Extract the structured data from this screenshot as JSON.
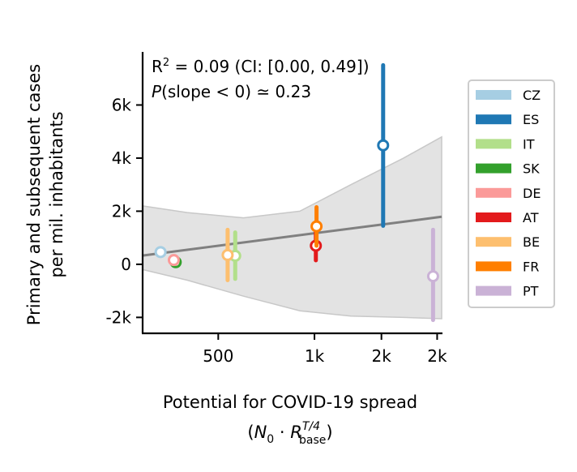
{
  "chart_data": {
    "type": "scatter",
    "title": "",
    "xlabel_line1": "Potential for COVID-19 spread",
    "xlabel_math": {
      "base": "N",
      "sub0": "0",
      "dot": " · ",
      "r": "R",
      "sup": "T/4",
      "sub": "base"
    },
    "ylabel_lines": [
      "Primary and subsequent cases",
      "per mil. inhabitants"
    ],
    "annotation_r2": {
      "r": "R",
      "sup": "2",
      "rest": " = 0.09 (CI: [0.00, 0.49])"
    },
    "annotation_p": {
      "p": "P",
      "rest": "(slope < 0) ≃ 0.23"
    },
    "xscale": "log",
    "xlim": [
      290,
      2500
    ],
    "ylim": [
      -2600,
      8000
    ],
    "x_ticks": [
      {
        "value": 500,
        "label": "500"
      },
      {
        "value": 1000,
        "label": "1k"
      },
      {
        "value": 1620,
        "label": "2k"
      },
      {
        "value": 2420,
        "label": "2k"
      }
    ],
    "y_ticks": [
      {
        "value": 6000,
        "label": "6k"
      },
      {
        "value": 4000,
        "label": "4k"
      },
      {
        "value": 2000,
        "label": "2k"
      },
      {
        "value": 0,
        "label": "0"
      },
      {
        "value": -2000,
        "label": "-2k"
      }
    ],
    "regression": {
      "x": [
        290,
        2500
      ],
      "y": [
        330,
        1790
      ],
      "color": "#808080"
    },
    "confidence_band": {
      "x": [
        290,
        400,
        600,
        900,
        1300,
        1900,
        2500
      ],
      "lower": [
        -200,
        -600,
        -1200,
        -1750,
        -1950,
        -2000,
        -2050
      ],
      "upper": [
        2200,
        1950,
        1750,
        2000,
        3000,
        4000,
        4800
      ],
      "color": "#d9d9d9"
    },
    "series": [
      {
        "name": "CZ",
        "color": "#a6cee3",
        "x": 330,
        "y": 460,
        "lo": 460,
        "hi": 460
      },
      {
        "name": "ES",
        "color": "#1f78b4",
        "x": 1640,
        "y": 4480,
        "lo": 1450,
        "hi": 7500
      },
      {
        "name": "IT",
        "color": "#b2df8a",
        "x": 565,
        "y": 320,
        "lo": -550,
        "hi": 1200
      },
      {
        "name": "SK",
        "color": "#33a02c",
        "x": 368,
        "y": 80,
        "lo": 80,
        "hi": 80
      },
      {
        "name": "DE",
        "color": "#fb9a99",
        "x": 363,
        "y": 160,
        "lo": 160,
        "hi": 160
      },
      {
        "name": "AT",
        "color": "#e31a1c",
        "x": 1010,
        "y": 700,
        "lo": 150,
        "hi": 1200
      },
      {
        "name": "BE",
        "color": "#fdbf6f",
        "x": 535,
        "y": 350,
        "lo": -600,
        "hi": 1300
      },
      {
        "name": "FR",
        "color": "#ff7f00",
        "x": 1015,
        "y": 1430,
        "lo": 700,
        "hi": 2150
      },
      {
        "name": "PT",
        "color": "#cab2d6",
        "x": 2350,
        "y": -450,
        "lo": -2100,
        "hi": 1300
      }
    ]
  }
}
